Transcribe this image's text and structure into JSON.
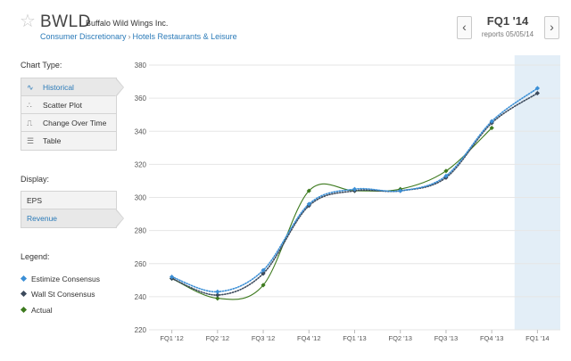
{
  "header": {
    "ticker": "BWLD",
    "company": "Buffalo Wild Wings Inc.",
    "breadcrumb": [
      "Consumer Discretionary",
      "Hotels Restaurants & Leisure"
    ],
    "breadcrumb_sep": "›",
    "quarter": "FQ1 '14",
    "reports": "reports 05/05/14",
    "prev": "‹",
    "next": "›"
  },
  "sidebar": {
    "chart_type_label": "Chart Type:",
    "chart_types": [
      {
        "label": "Historical",
        "icon": "∿",
        "icon_name": "line-wave-icon",
        "active": true
      },
      {
        "label": "Scatter Plot",
        "icon": "∴",
        "icon_name": "scatter-icon",
        "active": false
      },
      {
        "label": "Change Over Time",
        "icon": "⎍",
        "icon_name": "step-icon",
        "active": false
      },
      {
        "label": "Table",
        "icon": "☰",
        "icon_name": "table-icon",
        "active": false
      }
    ],
    "display_label": "Display:",
    "display": [
      {
        "label": "EPS",
        "active": false
      },
      {
        "label": "Revenue",
        "active": true
      }
    ],
    "legend_label": "Legend:",
    "legend": [
      {
        "label": "Estimize Consensus",
        "color": "#3b8fd6"
      },
      {
        "label": "Wall St Consensus",
        "color": "#3c4a5c"
      },
      {
        "label": "Actual",
        "color": "#3d7a1e"
      }
    ]
  },
  "chart_data": {
    "type": "line",
    "categories": [
      "FQ1 '12",
      "FQ2 '12",
      "FQ3 '12",
      "FQ4 '12",
      "FQ1 '13",
      "FQ2 '13",
      "FQ3 '13",
      "FQ4 '13",
      "FQ1 '14"
    ],
    "ylim": [
      220,
      380
    ],
    "yticks": [
      220,
      240,
      260,
      280,
      300,
      320,
      340,
      360,
      380
    ],
    "highlight_category": "FQ1 '14",
    "highlight_color": "#e3eef7",
    "series": [
      {
        "name": "Estimize Consensus",
        "color": "#3b8fd6",
        "style": "dotted",
        "values": [
          252,
          243,
          256,
          296,
          305,
          304,
          313,
          346,
          366
        ]
      },
      {
        "name": "Wall St Consensus",
        "color": "#3c4a5c",
        "style": "dotted",
        "values": [
          251,
          241,
          254,
          295,
          304,
          304,
          312,
          345,
          363
        ]
      },
      {
        "name": "Actual",
        "color": "#3d7a1e",
        "style": "solid",
        "values": [
          251,
          239,
          247,
          304,
          304,
          305,
          316,
          342,
          null
        ]
      }
    ]
  }
}
